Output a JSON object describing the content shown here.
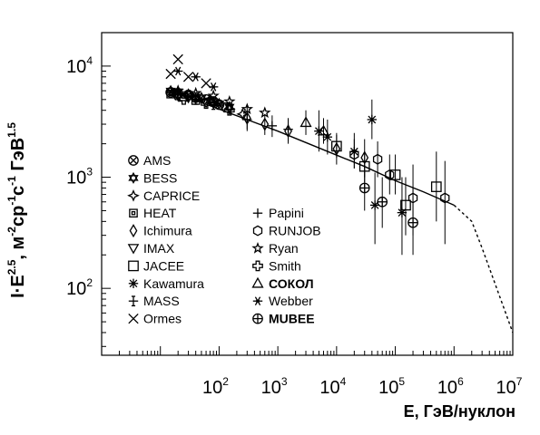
{
  "chart_data": {
    "type": "scatter",
    "xlabel": "E, ГэВ/нуклон",
    "ylabel_parts": [
      "I",
      "·",
      "E",
      "2.5",
      ", м",
      "-2",
      "ср",
      "-1",
      "с",
      "-1",
      " ГэВ",
      "1.5"
    ],
    "xscale": "log",
    "yscale": "log",
    "xlim": [
      1,
      10000000
    ],
    "ylim": [
      25,
      20000
    ],
    "x_ticks": [
      {
        "value": 100,
        "base": "10",
        "exp": "2"
      },
      {
        "value": 1000,
        "base": "10",
        "exp": "3"
      },
      {
        "value": 10000,
        "base": "10",
        "exp": "4"
      },
      {
        "value": 100000,
        "base": "10",
        "exp": "5"
      },
      {
        "value": 1000000,
        "base": "10",
        "exp": "6"
      },
      {
        "value": 10000000,
        "base": "10",
        "exp": "7"
      }
    ],
    "y_ticks": [
      {
        "value": 100,
        "base": "10",
        "exp": "2"
      },
      {
        "value": 1000,
        "base": "10",
        "exp": "3"
      },
      {
        "value": 10000,
        "base": "10",
        "exp": "4"
      }
    ],
    "legend_position": "left-center",
    "legend": [
      {
        "name": "AMS",
        "symbol": "circle-x",
        "bold": false
      },
      {
        "name": "BESS",
        "symbol": "star6",
        "bold": false
      },
      {
        "name": "CAPRICE",
        "symbol": "star4",
        "bold": false
      },
      {
        "name": "HEAT",
        "symbol": "square-open",
        "bold": false
      },
      {
        "name": "Ichimura",
        "symbol": "diamond",
        "bold": false
      },
      {
        "name": "IMAX",
        "symbol": "triangle-down",
        "bold": false
      },
      {
        "name": "JACEE",
        "symbol": "square",
        "bold": false
      },
      {
        "name": "Kawamura",
        "symbol": "asterisk",
        "bold": false
      },
      {
        "name": "MASS",
        "symbol": "plus-bar",
        "bold": false
      },
      {
        "name": "Ormes",
        "symbol": "x",
        "bold": false
      },
      {
        "name": "Papini",
        "symbol": "plus",
        "bold": false
      },
      {
        "name": "RUNJOB",
        "symbol": "hexagon",
        "bold": false
      },
      {
        "name": "Ryan",
        "symbol": "star5",
        "bold": false
      },
      {
        "name": "Smith",
        "symbol": "cross-open",
        "bold": false
      },
      {
        "name": "СОКОЛ",
        "symbol": "triangle",
        "bold": true
      },
      {
        "name": "Webber",
        "symbol": "snowflake",
        "bold": false
      },
      {
        "name": "MUBEE",
        "symbol": "circle-plus",
        "bold": true
      }
    ],
    "fit_curve": {
      "solid": [
        [
          15,
          6200
        ],
        [
          50,
          4700
        ],
        [
          100,
          4100
        ],
        [
          300,
          3300
        ],
        [
          1000,
          2600
        ],
        [
          3000,
          2050
        ],
        [
          10000,
          1580
        ],
        [
          30000,
          1250
        ],
        [
          100000,
          930
        ],
        [
          300000,
          740
        ],
        [
          1000000,
          560
        ]
      ],
      "dashed": [
        [
          1000000,
          560
        ],
        [
          2000000,
          400
        ],
        [
          3000000,
          230
        ],
        [
          5000000,
          110
        ],
        [
          10000000,
          40
        ]
      ]
    },
    "series": [
      {
        "name": "AMS",
        "symbol": "circle-x",
        "points": [
          {
            "x": 15,
            "y": 5800
          },
          {
            "x": 20,
            "y": 5700
          },
          {
            "x": 30,
            "y": 5500
          },
          {
            "x": 40,
            "y": 5200
          },
          {
            "x": 60,
            "y": 5000
          },
          {
            "x": 80,
            "y": 4800
          },
          {
            "x": 100,
            "y": 4500
          }
        ]
      },
      {
        "name": "BESS",
        "symbol": "star6",
        "points": [
          {
            "x": 15,
            "y": 6000
          },
          {
            "x": 20,
            "y": 5900
          },
          {
            "x": 30,
            "y": 5600
          },
          {
            "x": 50,
            "y": 5200
          },
          {
            "x": 70,
            "y": 4900
          },
          {
            "x": 100,
            "y": 4600
          },
          {
            "x": 150,
            "y": 4300
          }
        ]
      },
      {
        "name": "CAPRICE",
        "symbol": "star4",
        "points": [
          {
            "x": 20,
            "y": 5400
          },
          {
            "x": 40,
            "y": 5100
          },
          {
            "x": 80,
            "y": 4600
          },
          {
            "x": 150,
            "y": 4100
          },
          {
            "x": 250,
            "y": 3700
          }
        ]
      },
      {
        "name": "HEAT",
        "symbol": "square-open",
        "points": [
          {
            "x": 15,
            "y": 5600
          },
          {
            "x": 25,
            "y": 5300
          },
          {
            "x": 40,
            "y": 4900
          }
        ]
      },
      {
        "name": "Ichimura",
        "symbol": "diamond",
        "points": [
          {
            "x": 300,
            "y": 3400,
            "err": [
              2600,
              4400
            ]
          },
          {
            "x": 600,
            "y": 3000,
            "err": [
              2400,
              3700
            ]
          },
          {
            "x": 1500,
            "y": 2600,
            "err": [
              2000,
              3400
            ]
          },
          {
            "x": 10000,
            "y": 1800,
            "err": [
              1300,
              2500
            ]
          },
          {
            "x": 30000,
            "y": 1500,
            "err": [
              1000,
              2200
            ]
          }
        ]
      },
      {
        "name": "IMAX",
        "symbol": "triangle-down",
        "points": [
          {
            "x": 18,
            "y": 5500
          },
          {
            "x": 30,
            "y": 5200
          },
          {
            "x": 60,
            "y": 4700
          },
          {
            "x": 120,
            "y": 4300
          }
        ]
      },
      {
        "name": "JACEE",
        "symbol": "square",
        "points": [
          {
            "x": 10000,
            "y": 1900,
            "err": [
              1500,
              2400
            ]
          },
          {
            "x": 30000,
            "y": 1250,
            "err": [
              900,
              1700
            ]
          },
          {
            "x": 100000,
            "y": 1050,
            "err": [
              700,
              1600
            ]
          },
          {
            "x": 150000,
            "y": 560,
            "err": [
              300,
              1000
            ]
          },
          {
            "x": 500000,
            "y": 820,
            "err": [
              400,
              1700
            ]
          }
        ]
      },
      {
        "name": "Kawamura",
        "symbol": "asterisk",
        "points": [
          {
            "x": 5000,
            "y": 2600,
            "err": [
              1700,
              4000
            ]
          },
          {
            "x": 7000,
            "y": 2300,
            "err": [
              1600,
              3300
            ]
          },
          {
            "x": 20000,
            "y": 1700,
            "err": [
              1200,
              2500
            ]
          },
          {
            "x": 40000,
            "y": 3300,
            "err": [
              2200,
              5000
            ]
          },
          {
            "x": 45000,
            "y": 560,
            "err": [
              250,
              1100
            ]
          },
          {
            "x": 130000,
            "y": 480,
            "err": [
              200,
              1000
            ]
          }
        ]
      },
      {
        "name": "MASS",
        "symbol": "plus-bar",
        "points": [
          {
            "x": 20,
            "y": 5500
          },
          {
            "x": 40,
            "y": 5000
          },
          {
            "x": 80,
            "y": 4500
          }
        ]
      },
      {
        "name": "Ormes",
        "symbol": "x",
        "points": [
          {
            "x": 15,
            "y": 8500
          },
          {
            "x": 20,
            "y": 11500
          },
          {
            "x": 30,
            "y": 8000
          },
          {
            "x": 60,
            "y": 7000
          }
        ]
      },
      {
        "name": "Papini",
        "symbol": "plus",
        "points": [
          {
            "x": 300,
            "y": 3300,
            "err": [
              2700,
              4000
            ]
          },
          {
            "x": 800,
            "y": 2900,
            "err": [
              2300,
              3600
            ]
          },
          {
            "x": 1500,
            "y": 2700,
            "err": [
              2100,
              3400
            ]
          }
        ]
      },
      {
        "name": "RUNJOB",
        "symbol": "hexagon",
        "points": [
          {
            "x": 20000,
            "y": 1600,
            "err": [
              1200,
              2200
            ]
          },
          {
            "x": 50000,
            "y": 1450,
            "err": [
              1000,
              2100
            ]
          },
          {
            "x": 80000,
            "y": 1050,
            "err": [
              700,
              1600
            ]
          },
          {
            "x": 200000,
            "y": 650,
            "err": [
              300,
              1300
            ]
          },
          {
            "x": 700000,
            "y": 650,
            "err": [
              250,
              1400
            ]
          }
        ]
      },
      {
        "name": "Ryan",
        "symbol": "star5",
        "points": [
          {
            "x": 20,
            "y": 6000
          },
          {
            "x": 40,
            "y": 5700
          },
          {
            "x": 80,
            "y": 5400
          },
          {
            "x": 150,
            "y": 4800
          },
          {
            "x": 300,
            "y": 4100
          },
          {
            "x": 600,
            "y": 3800
          }
        ]
      },
      {
        "name": "Smith",
        "symbol": "cross-open",
        "points": [
          {
            "x": 25,
            "y": 5000
          },
          {
            "x": 60,
            "y": 4600
          },
          {
            "x": 150,
            "y": 4000
          }
        ]
      },
      {
        "name": "СОКОЛ",
        "symbol": "triangle",
        "points": [
          {
            "x": 3000,
            "y": 3100,
            "err": [
              2400,
              4000
            ]
          },
          {
            "x": 6000,
            "y": 2600,
            "err": [
              2000,
              3400
            ]
          }
        ]
      },
      {
        "name": "Webber",
        "symbol": "snowflake",
        "points": [
          {
            "x": 20,
            "y": 9000
          },
          {
            "x": 40,
            "y": 8000
          },
          {
            "x": 80,
            "y": 6500
          }
        ]
      },
      {
        "name": "MUBEE",
        "symbol": "circle-plus",
        "points": [
          {
            "x": 30000,
            "y": 800,
            "err": [
              500,
              1300
            ]
          },
          {
            "x": 60000,
            "y": 600,
            "err": [
              350,
              1000
            ]
          },
          {
            "x": 200000,
            "y": 390,
            "err": [
              200,
              800
            ]
          }
        ]
      }
    ]
  }
}
